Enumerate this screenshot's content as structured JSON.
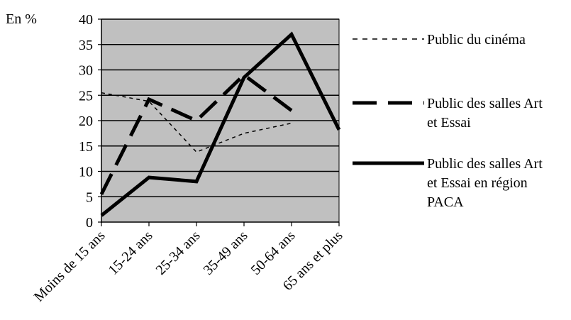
{
  "chart_data": {
    "type": "line",
    "ylabel": "En %",
    "ylim": [
      0,
      40
    ],
    "yticks": [
      0,
      5,
      10,
      15,
      20,
      25,
      30,
      35,
      40
    ],
    "categories": [
      "Moins de 15 ans",
      "15-24 ans",
      "25-34 ans",
      "35-49 ans",
      "50-64 ans",
      "65 ans et plus"
    ],
    "grid": true,
    "plot_background": "#c0c0c0",
    "legend_position": "right",
    "series": [
      {
        "name": "Public du cinéma",
        "values": [
          25.5,
          23.8,
          13.8,
          17.5,
          19.5,
          null
        ],
        "style": "dotted",
        "color": "#000000"
      },
      {
        "name": "Public des salles Art et Essai",
        "values": [
          5.5,
          24.2,
          20.0,
          29.0,
          22.0,
          null
        ],
        "style": "dashed",
        "color": "#000000"
      },
      {
        "name": "Public des salles Art et Essai en région PACA",
        "values": [
          1.3,
          8.8,
          8.0,
          28.5,
          37.0,
          18.2
        ],
        "style": "solid",
        "color": "#000000"
      }
    ],
    "legend": [
      {
        "lines": [
          "Public du cinéma"
        ]
      },
      {
        "lines": [
          "Public des salles Art",
          "et Essai"
        ]
      },
      {
        "lines": [
          "Public des salles Art",
          "et Essai en région",
          "PACA"
        ]
      }
    ]
  }
}
